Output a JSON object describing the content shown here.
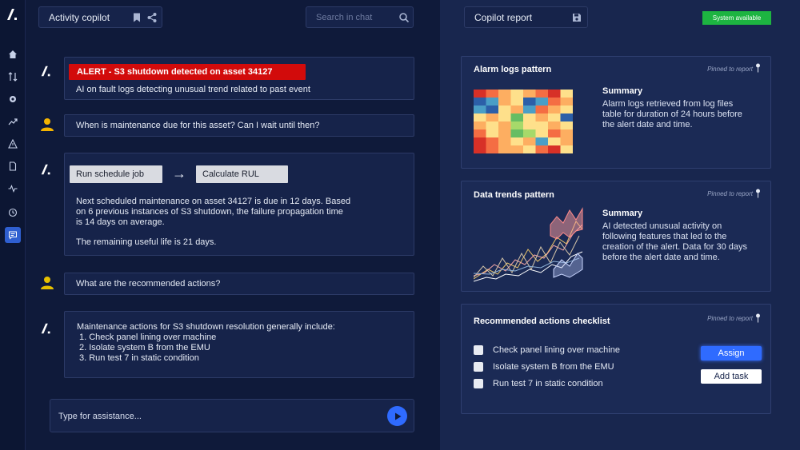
{
  "header": {
    "copilot_title": "Activity copilot",
    "search_placeholder": "Search in chat",
    "report_title": "Copilot report",
    "status": "System available"
  },
  "chat": {
    "alert": "ALERT  -  S3 shutdown detected on asset 34127",
    "alert_detail": "AI on fault logs detecting unusual trend related to past event",
    "q1": "When is maintenance due for this asset? Can I wait until then?",
    "step1": "Run schedule job",
    "arrow": "→",
    "step2": "Calculate RUL",
    "a1_line1": "Next scheduled maintenance on asset 34127 is due in 12 days. Based",
    "a1_line2": "on 6 previous instances of S3 shutdown, the failure propagation time",
    "a1_line3": "is 14 days on average.",
    "a1_line4": "The remaining useful life is 21 days.",
    "q2": "What are the recommended actions?",
    "a2_intro": "Maintenance actions for S3 shutdown resolution generally include:",
    "a2_items": [
      "1. Check panel lining over machine",
      "2. Isolate system B from the EMU",
      "3. Run test 7 in static condition"
    ],
    "input_placeholder": "Type for assistance..."
  },
  "report": {
    "pinned_label": "Pinned to report",
    "alarm_title": "Alarm logs pattern",
    "summary_label": "Summary",
    "alarm_summary": [
      "Alarm logs retrieved from log files",
      "table for duration of 24 hours before",
      "the alert date and time."
    ],
    "trends_title": "Data trends pattern",
    "trends_summary": [
      "AI detected unusual activity on",
      "following features that led to the",
      "creation of the alert. Data for 30 days",
      "before the alert date and time."
    ],
    "checklist_title": "Recommended actions checklist",
    "checklist": [
      "Check panel lining over machine",
      "Isolate system B from the EMU",
      "Run test 7 in static condition"
    ],
    "assign_label": "Assign",
    "add_task_label": "Add task"
  },
  "icons": [
    "logo-icon",
    "home-icon",
    "sort-icon",
    "gear-icon",
    "trend-icon",
    "warning-icon",
    "document-icon",
    "pulse-icon",
    "history-icon",
    "chat-icon",
    "bookmark-icon",
    "share-icon",
    "search-icon",
    "save-icon",
    "pin-icon",
    "send-icon",
    "user-icon"
  ],
  "colors": {
    "alert": "#d20b0b",
    "accent": "#2f6bff",
    "status": "#1db441",
    "heatmap": [
      "#d73027",
      "#f46d43",
      "#fdae61",
      "#fee08b",
      "#a6d96a",
      "#66bd63",
      "#4a9ec6",
      "#2c5fa8"
    ]
  }
}
